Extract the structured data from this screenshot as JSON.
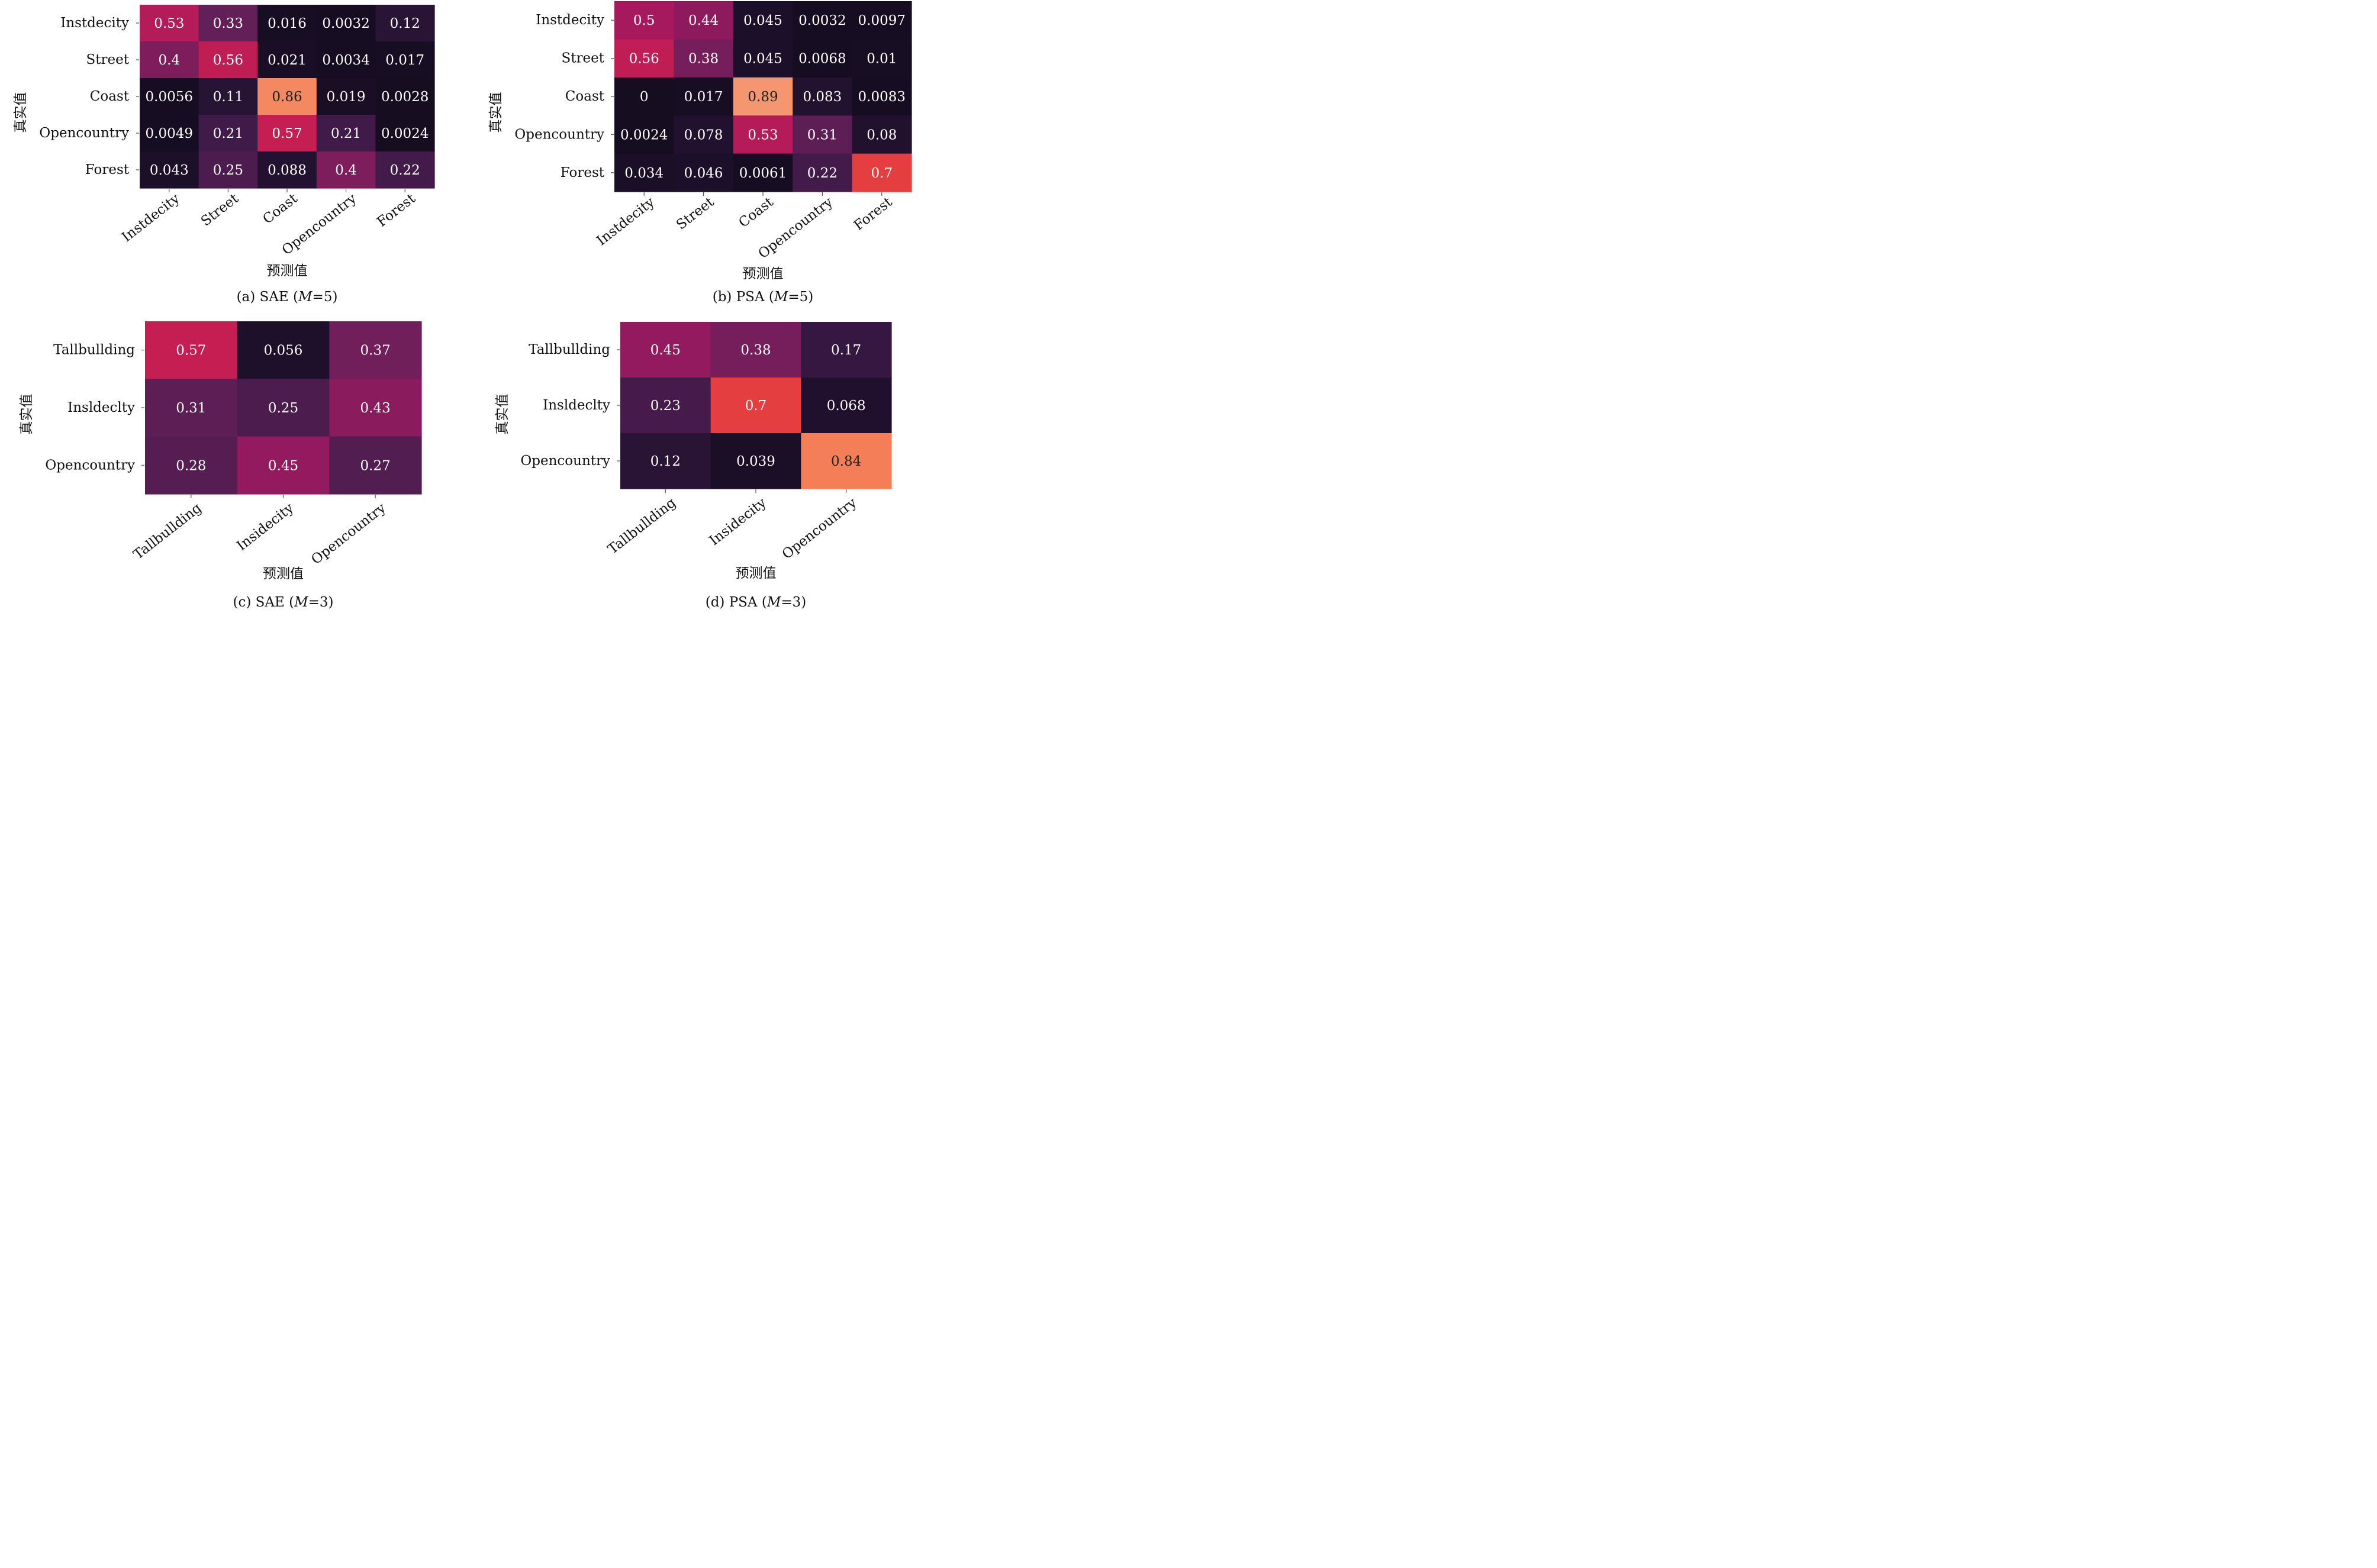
{
  "chart_data": [
    {
      "type": "heatmap",
      "caption_prefix": "(a) SAE (",
      "caption_var": "M",
      "caption_suffix": "=5)",
      "xlabel": "预测值",
      "ylabel": "真实值",
      "rows": [
        "Instdecity",
        "Street",
        "Coast",
        "Opencountry",
        "Forest"
      ],
      "columns": [
        "Instdecity",
        "Street",
        "Coast",
        "Opencountry",
        "Forest"
      ],
      "values": [
        [
          "0.53",
          "0.33",
          "0.016",
          "0.0032",
          "0.12"
        ],
        [
          "0.4",
          "0.56",
          "0.021",
          "0.0034",
          "0.017"
        ],
        [
          "0.0056",
          "0.11",
          "0.86",
          "0.019",
          "0.0028"
        ],
        [
          "0.0049",
          "0.21",
          "0.57",
          "0.21",
          "0.0024"
        ],
        [
          "0.043",
          "0.25",
          "0.088",
          "0.4",
          "0.22"
        ]
      ]
    },
    {
      "type": "heatmap",
      "caption_prefix": "(b) PSA (",
      "caption_var": "M",
      "caption_suffix": "=5)",
      "xlabel": "预测值",
      "ylabel": "真实值",
      "rows": [
        "Instdecity",
        "Street",
        "Coast",
        "Opencountry",
        "Forest"
      ],
      "columns": [
        "Instdecity",
        "Street",
        "Coast",
        "Opencountry",
        "Forest"
      ],
      "values": [
        [
          "0.5",
          "0.44",
          "0.045",
          "0.0032",
          "0.0097"
        ],
        [
          "0.56",
          "0.38",
          "0.045",
          "0.0068",
          "0.01"
        ],
        [
          "0",
          "0.017",
          "0.89",
          "0.083",
          "0.0083"
        ],
        [
          "0.0024",
          "0.078",
          "0.53",
          "0.31",
          "0.08"
        ],
        [
          "0.034",
          "0.046",
          "0.0061",
          "0.22",
          "0.7"
        ]
      ]
    },
    {
      "type": "heatmap",
      "caption_prefix": "(c) SAE (",
      "caption_var": "M",
      "caption_suffix": "=3)",
      "xlabel": "预测值",
      "ylabel": "真实值",
      "rows": [
        "Tallbullding",
        "Insldeclty",
        "Opencountry"
      ],
      "columns": [
        "Tallbullding",
        "Insidecity",
        "Opencountry"
      ],
      "values": [
        [
          "0.57",
          "0.056",
          "0.37"
        ],
        [
          "0.31",
          "0.25",
          "0.43"
        ],
        [
          "0.28",
          "0.45",
          "0.27"
        ]
      ]
    },
    {
      "type": "heatmap",
      "caption_prefix": "(d) PSA (",
      "caption_var": "M",
      "caption_suffix": "=3)",
      "xlabel": "预测值",
      "ylabel": "真实值",
      "rows": [
        "Tallbullding",
        "Insldeclty",
        "Opencountry"
      ],
      "columns": [
        "Tallbullding",
        "Insidecity",
        "Opencountry"
      ],
      "values": [
        [
          "0.45",
          "0.38",
          "0.17"
        ],
        [
          "0.23",
          "0.7",
          "0.068"
        ],
        [
          "0.12",
          "0.039",
          "0.84"
        ]
      ]
    }
  ]
}
